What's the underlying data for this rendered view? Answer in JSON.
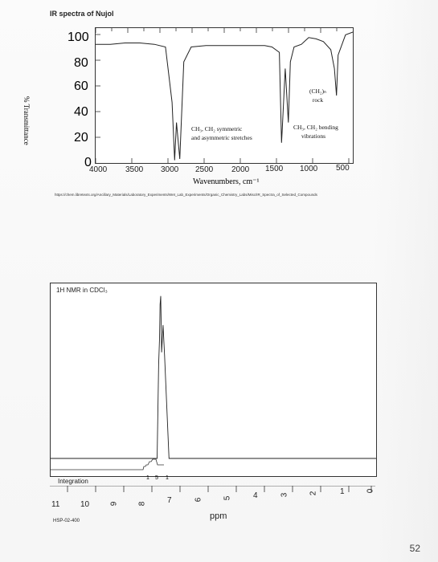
{
  "ir": {
    "title": "IR spectra of Nujol",
    "ylabel": "% Transmittance",
    "xlabel": "Wavenumbers, cm⁻¹",
    "yticks": [
      "100",
      "80",
      "60",
      "40",
      "20",
      "0"
    ],
    "xticks": [
      "4000",
      "3500",
      "3000",
      "2500",
      "2000",
      "1500",
      "1000",
      "500"
    ],
    "annotations": {
      "stretch_line1": "CH₃, CH₂ symmetric",
      "stretch_line2": "and asymmetric stretches",
      "bend_line1": "CH₃, CH₂ bending",
      "bend_line2": "vibrations",
      "rock_line1": "(CH₂)ₙ",
      "rock_line2": "rock"
    },
    "source_url": "https://chem.libretexts.org/Ancillary_Materials/Laboratory_Experiments/Wet_Lab_Experiments/Organic_Chemistry_Labs/Misc/IR_Spectra_of_Selected_Compounds"
  },
  "nmr": {
    "title": "1H NMR in CDCl₃",
    "integration_label": "Integration",
    "integration_values": [
      "1",
      "5",
      "1"
    ],
    "xticks": [
      "11",
      "10",
      "9",
      "8",
      "7",
      "6",
      "5",
      "4",
      "3",
      "2",
      "1",
      "0"
    ],
    "xlabel": "ppm",
    "footer_code": "HSP-02-400"
  },
  "page_number": "52",
  "chart_data": [
    {
      "type": "line",
      "title": "IR spectra of Nujol",
      "xlabel": "Wavenumbers, cm⁻¹",
      "ylabel": "% Transmittance",
      "xlim": [
        4000,
        500
      ],
      "ylim": [
        0,
        100
      ],
      "x": [
        4000,
        3800,
        3600,
        3400,
        3200,
        3050,
        2960,
        2925,
        2900,
        2855,
        2800,
        2700,
        2500,
        2300,
        2100,
        1900,
        1700,
        1600,
        1500,
        1470,
        1460,
        1420,
        1377,
        1350,
        1300,
        1200,
        1100,
        1000,
        900,
        800,
        750,
        722,
        700,
        600,
        500
      ],
      "y": [
        88,
        88,
        89,
        89,
        88,
        86,
        45,
        2,
        30,
        3,
        75,
        86,
        87,
        87,
        87,
        87,
        87,
        86,
        82,
        15,
        25,
        70,
        30,
        75,
        86,
        88,
        93,
        92,
        90,
        84,
        70,
        50,
        80,
        95,
        97
      ]
    },
    {
      "type": "line",
      "title": "1H NMR in CDCl₃",
      "xlabel": "ppm",
      "xlim": [
        11,
        0
      ],
      "x": [
        11,
        8.2,
        7.4,
        7.35,
        7.32,
        7.3,
        7.28,
        7.25,
        7.2,
        7.15,
        7.0,
        0
      ],
      "y": [
        0,
        0,
        0,
        55,
        70,
        90,
        95,
        62,
        78,
        60,
        0,
        0
      ]
    }
  ]
}
